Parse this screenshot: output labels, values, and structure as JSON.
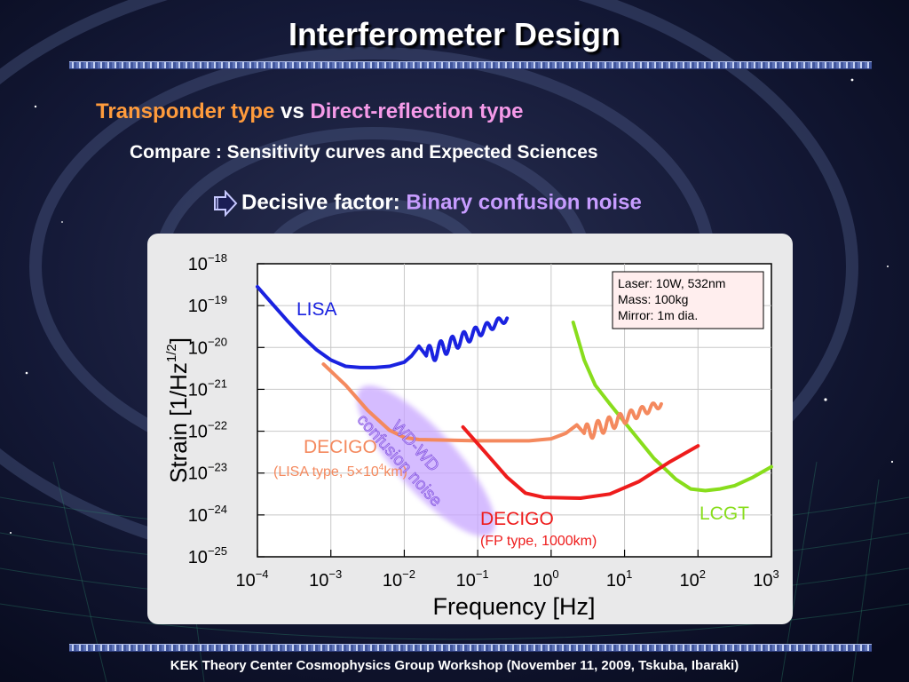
{
  "slide": {
    "title": "Interferometer Design",
    "line1": {
      "part1": "Transponder type",
      "part2": " vs ",
      "part3": "Direct-reflection type"
    },
    "line2": "Compare : Sensitivity curves and Expected Sciences",
    "line3": {
      "label": "Decisive factor: ",
      "value": "Binary confusion noise"
    },
    "footer": "KEK Theory Center Cosmophysics Group Workshop (November 11, 2009, Tskuba, Ibaraki)"
  },
  "colors": {
    "lisa": "#1a22e0",
    "decigo_lisa_type": "#f4895e",
    "decigo_fp": "#ee1c1c",
    "lcgt": "#88dd1c",
    "confusion_region": "#c8a6ff"
  },
  "chart_data": {
    "type": "line",
    "xlabel": "Frequency   [Hz]",
    "ylabel": "Strain   [1/Hz",
    "ylabel_sup": "1/2",
    "ylabel_end": "]",
    "log_x": true,
    "log_y": true,
    "xlim_exp": [
      -4,
      3
    ],
    "ylim_exp": [
      -25,
      -18
    ],
    "x_ticks": [
      {
        "base": "10",
        "exp": "−4"
      },
      {
        "base": "10",
        "exp": "−3"
      },
      {
        "base": "10",
        "exp": "−2"
      },
      {
        "base": "10",
        "exp": "−1"
      },
      {
        "base": "10",
        "exp": "0"
      },
      {
        "base": "10",
        "exp": "1"
      },
      {
        "base": "10",
        "exp": "2"
      },
      {
        "base": "10",
        "exp": "3"
      }
    ],
    "y_ticks": [
      {
        "base": "10",
        "exp": "−18"
      },
      {
        "base": "10",
        "exp": "−19"
      },
      {
        "base": "10",
        "exp": "−20"
      },
      {
        "base": "10",
        "exp": "−21"
      },
      {
        "base": "10",
        "exp": "−22"
      },
      {
        "base": "10",
        "exp": "−23"
      },
      {
        "base": "10",
        "exp": "−24"
      },
      {
        "base": "10",
        "exp": "−25"
      }
    ],
    "info_box": [
      "Laser: 10W, 532nm",
      "Mass: 100kg",
      "Mirror: 1m dia."
    ],
    "series": [
      {
        "name": "LISA",
        "color_key": "lisa",
        "points_log": [
          [
            -4,
            -18.55
          ],
          [
            -3.8,
            -18.95
          ],
          [
            -3.6,
            -19.35
          ],
          [
            -3.4,
            -19.72
          ],
          [
            -3.2,
            -20.05
          ],
          [
            -3.0,
            -20.3
          ],
          [
            -2.8,
            -20.45
          ],
          [
            -2.6,
            -20.48
          ],
          [
            -2.4,
            -20.48
          ],
          [
            -2.2,
            -20.45
          ],
          [
            -2.0,
            -20.35
          ],
          [
            -1.9,
            -20.2
          ],
          [
            -1.8,
            -19.97
          ],
          [
            -1.7,
            -20.2
          ]
        ],
        "wiggle": {
          "x_start": -1.7,
          "x_end": -0.6,
          "y_start": -20.2,
          "y_end": -19.3,
          "cycles": 7,
          "amp_start": 0.22,
          "amp_end": 0.08
        }
      },
      {
        "name": "DECIGO",
        "sublabel": "(LISA type, 5×10",
        "sublabel_sup": "4",
        "sublabel_end": "km)",
        "color_key": "decigo_lisa_type",
        "points_log": [
          [
            -3.1,
            -20.4
          ],
          [
            -2.8,
            -20.9
          ],
          [
            -2.5,
            -21.5
          ],
          [
            -2.2,
            -21.98
          ],
          [
            -2.0,
            -22.15
          ],
          [
            -1.8,
            -22.2
          ],
          [
            -1.0,
            -22.23
          ],
          [
            -0.3,
            -22.23
          ],
          [
            0.0,
            -22.18
          ],
          [
            0.2,
            -22.05
          ],
          [
            0.35,
            -21.85
          ],
          [
            0.45,
            -22.05
          ]
        ],
        "wiggle": {
          "x_start": 0.45,
          "x_end": 1.5,
          "y_start": -22.05,
          "y_end": -21.35,
          "cycles": 7,
          "amp_start": 0.2,
          "amp_end": 0.08
        }
      },
      {
        "name": "DECIGO",
        "sublabel": "(FP type, 1000km)",
        "color_key": "decigo_fp",
        "points_log": [
          [
            -1.2,
            -21.9
          ],
          [
            -0.9,
            -22.5
          ],
          [
            -0.6,
            -23.1
          ],
          [
            -0.35,
            -23.48
          ],
          [
            -0.1,
            -23.58
          ],
          [
            0.4,
            -23.6
          ],
          [
            0.8,
            -23.5
          ],
          [
            1.2,
            -23.2
          ],
          [
            1.6,
            -22.75
          ],
          [
            2.0,
            -22.35
          ]
        ]
      },
      {
        "name": "LCGT",
        "color_key": "lcgt",
        "points_log": [
          [
            0.3,
            -19.4
          ],
          [
            0.45,
            -20.3
          ],
          [
            0.6,
            -20.9
          ],
          [
            0.8,
            -21.35
          ],
          [
            1.1,
            -22.0
          ],
          [
            1.4,
            -22.65
          ],
          [
            1.7,
            -23.15
          ],
          [
            1.9,
            -23.38
          ],
          [
            2.1,
            -23.42
          ],
          [
            2.3,
            -23.38
          ],
          [
            2.5,
            -23.3
          ],
          [
            2.75,
            -23.1
          ],
          [
            3.0,
            -22.85
          ]
        ]
      }
    ],
    "annotations": {
      "confusion_line1": "WD-WD",
      "confusion_line2": "confusion noise"
    }
  }
}
